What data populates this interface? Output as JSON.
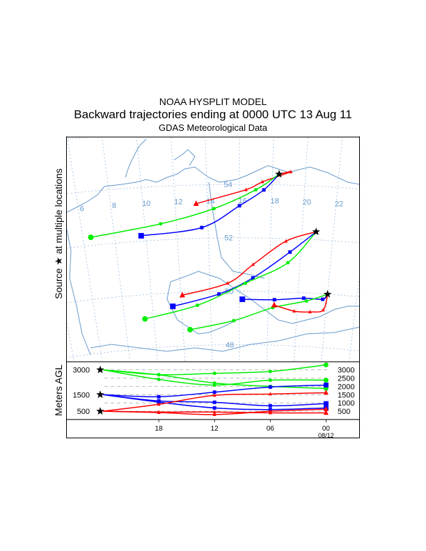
{
  "title": {
    "line1": "NOAA HYSPLIT MODEL",
    "line2": "Backward trajectories ending at 0000 UTC 13 Aug 11",
    "line3": "GDAS Meteorological Data"
  },
  "side_label": "Source ★ at multiple locations",
  "height_axis_label": "Meters AGL",
  "colors": {
    "red": "#ff0000",
    "blue": "#0000ff",
    "green": "#00ee00",
    "map": "#6699cc"
  },
  "chart_data": {
    "type": "line",
    "map": {
      "lon_labels": [
        6,
        8,
        10,
        12,
        14,
        16,
        18,
        20,
        22
      ],
      "lat_labels": [
        54,
        52,
        50,
        48
      ],
      "grid": true
    },
    "sources": [
      {
        "lon": 18.4,
        "lat": 54.4
      },
      {
        "lon": 20.9,
        "lat": 52.3
      },
      {
        "lon": 22.0,
        "lat": 50.0
      }
    ],
    "trajectories": [
      {
        "source": 0,
        "color": "red",
        "marker": "triangle",
        "path": [
          [
            18.4,
            54.4
          ],
          [
            19.1,
            54.5
          ],
          [
            17.4,
            54.1
          ],
          [
            16.4,
            53.8
          ],
          [
            13.3,
            53.3
          ]
        ]
      },
      {
        "source": 0,
        "color": "green",
        "marker": "circle",
        "path": [
          [
            18.4,
            54.4
          ],
          [
            17.0,
            53.8
          ],
          [
            14.4,
            53.1
          ],
          [
            11.0,
            52.6
          ],
          [
            6.5,
            52.3
          ]
        ]
      },
      {
        "source": 0,
        "color": "blue",
        "marker": "square",
        "path": [
          [
            18.4,
            54.4
          ],
          [
            17.5,
            53.8
          ],
          [
            16.0,
            53.2
          ],
          [
            13.6,
            52.4
          ],
          [
            9.7,
            52.2
          ]
        ]
      },
      {
        "source": 1,
        "color": "red",
        "marker": "triangle",
        "path": [
          [
            20.9,
            52.3
          ],
          [
            19.0,
            51.9
          ],
          [
            16.9,
            51.0
          ],
          [
            15.2,
            50.3
          ],
          [
            12.1,
            49.9
          ]
        ]
      },
      {
        "source": 1,
        "color": "blue",
        "marker": "square",
        "path": [
          [
            20.9,
            52.3
          ],
          [
            19.3,
            51.5
          ],
          [
            16.9,
            50.5
          ],
          [
            14.6,
            49.9
          ],
          [
            11.4,
            49.5
          ]
        ]
      },
      {
        "source": 1,
        "color": "green",
        "marker": "circle",
        "path": [
          [
            20.9,
            52.3
          ],
          [
            19.2,
            51.1
          ],
          [
            16.4,
            50.3
          ],
          [
            13.1,
            49.5
          ],
          [
            9.4,
            49.1
          ]
        ]
      },
      {
        "source": 2,
        "color": "blue",
        "marker": "square",
        "path": [
          [
            22.0,
            50.0
          ],
          [
            21.7,
            49.8
          ],
          [
            20.4,
            49.8
          ],
          [
            18.4,
            49.7
          ],
          [
            16.2,
            49.7
          ]
        ]
      },
      {
        "source": 2,
        "color": "green",
        "marker": "circle",
        "path": [
          [
            22.0,
            50.0
          ],
          [
            20.6,
            49.7
          ],
          [
            18.3,
            49.4
          ],
          [
            15.6,
            48.9
          ],
          [
            12.5,
            48.6
          ]
        ]
      },
      {
        "source": 2,
        "color": "red",
        "marker": "triangle",
        "path": [
          [
            22.0,
            50.0
          ],
          [
            21.8,
            49.4
          ],
          [
            20.9,
            49.3
          ],
          [
            19.8,
            49.3
          ],
          [
            18.4,
            49.5
          ]
        ]
      }
    ],
    "height_panel": {
      "ylabel": "Meters AGL",
      "left_ticks": [
        3000,
        1500,
        500
      ],
      "right_ticks": [
        3000,
        2500,
        2000,
        1500,
        1000,
        500
      ],
      "x_ticks": [
        "18",
        "12",
        "06",
        "00"
      ],
      "x_tick_hours": [
        6,
        12,
        18,
        24
      ],
      "date_label": "08/12",
      "ylim": [
        0,
        3500
      ],
      "hours_back": [
        0,
        6,
        12,
        18,
        24
      ],
      "series": [
        {
          "color": "green",
          "marker": "circle",
          "values": [
            3000,
            2710,
            2790,
            2900,
            3300
          ]
        },
        {
          "color": "green",
          "marker": "circle",
          "values": [
            3000,
            2420,
            2080,
            2375,
            2375
          ]
        },
        {
          "color": "green",
          "marker": "circle",
          "values": [
            3000,
            2700,
            2200,
            2000,
            1875
          ]
        },
        {
          "color": "blue",
          "marker": "square",
          "values": [
            1500,
            1375,
            1650,
            1960,
            2080
          ]
        },
        {
          "color": "blue",
          "marker": "square",
          "values": [
            1500,
            1125,
            1040,
            830,
            960
          ]
        },
        {
          "color": "blue",
          "marker": "square",
          "values": [
            1500,
            1050,
            700,
            600,
            700
          ]
        },
        {
          "color": "red",
          "marker": "triangle",
          "values": [
            500,
            920,
            1460,
            1540,
            1620
          ]
        },
        {
          "color": "red",
          "marker": "triangle",
          "values": [
            500,
            420,
            300,
            500,
            625
          ]
        },
        {
          "color": "red",
          "marker": "triangle",
          "values": [
            500,
            450,
            450,
            400,
            400
          ]
        }
      ]
    }
  }
}
